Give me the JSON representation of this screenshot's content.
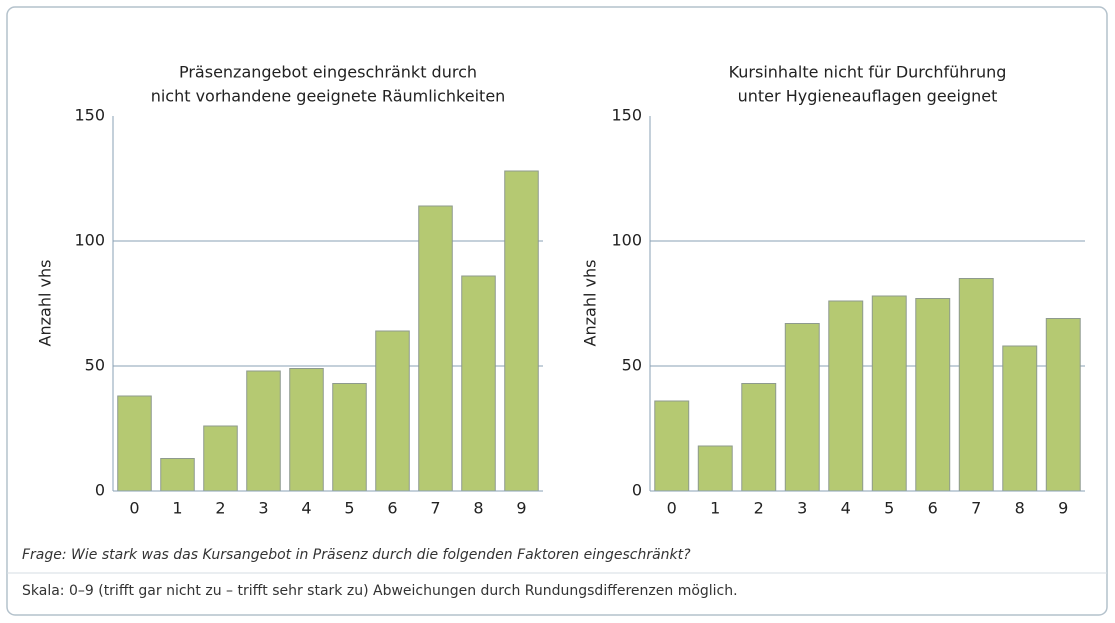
{
  "chart_data": [
    {
      "type": "bar",
      "title": [
        "Präsenzangebot eingeschränkt durch",
        "nicht vorhandene geeignete Räumlichkeiten"
      ],
      "ylabel": "Anzahl vhs",
      "categories": [
        "0",
        "1",
        "2",
        "3",
        "4",
        "5",
        "6",
        "7",
        "8",
        "9"
      ],
      "values": [
        38,
        13,
        26,
        48,
        49,
        43,
        64,
        114,
        86,
        128
      ],
      "color": "#b5c972",
      "ylim": [
        0,
        150
      ],
      "yticks": [
        0,
        50,
        100,
        150
      ],
      "grid": true
    },
    {
      "type": "bar",
      "title": [
        "Kursinhalte nicht für Durchführung",
        "unter Hygieneauflagen geeignet"
      ],
      "ylabel": "Anzahl vhs",
      "categories": [
        "0",
        "1",
        "2",
        "3",
        "4",
        "5",
        "6",
        "7",
        "8",
        "9"
      ],
      "values": [
        36,
        18,
        43,
        67,
        76,
        78,
        77,
        85,
        58,
        69
      ],
      "color": "#b5c972",
      "ylim": [
        0,
        150
      ],
      "yticks": [
        0,
        50,
        100,
        150
      ],
      "grid": true
    }
  ],
  "notes": [
    "Frage: Wie stark was das Kursangebot in Präsenz durch die folgenden Faktoren eingeschränkt?",
    "Skala: 0–9 (trifft gar nicht zu – trifft sehr stark zu) Abweichungen durch Rundungsdifferenzen möglich."
  ]
}
